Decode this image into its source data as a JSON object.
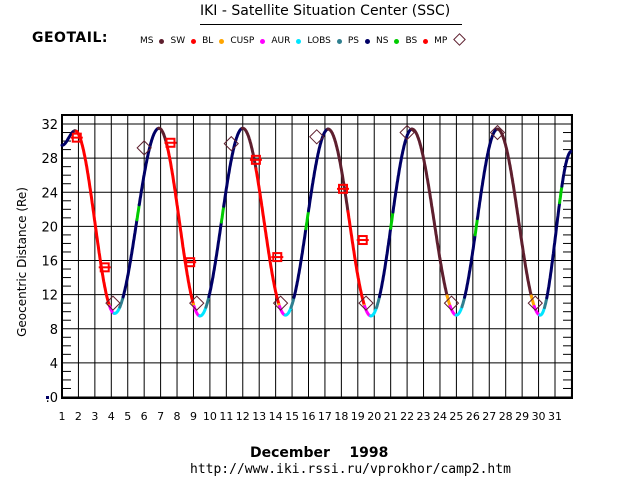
{
  "header": {
    "title": "IKI - Satellite Situation Center (SSC)",
    "satellite": "GEOTAIL:",
    "url": "http://www.iki.rssi.ru/vprokhor/camp2.htm"
  },
  "legend": [
    {
      "label": "MS",
      "color": "#5e1f2e",
      "marker": "dot"
    },
    {
      "label": "SW",
      "color": "#ff0000",
      "marker": "dot"
    },
    {
      "label": "BL",
      "color": "#ffa500",
      "marker": "dot"
    },
    {
      "label": "CUSP",
      "color": "#ff00ff",
      "marker": "dot"
    },
    {
      "label": "AUR",
      "color": "#00e5ff",
      "marker": "dot"
    },
    {
      "label": "LOBS",
      "color": "#2f7f8f",
      "marker": "dot"
    },
    {
      "label": "PS",
      "color": "#000066",
      "marker": "dot"
    },
    {
      "label": "NS",
      "color": "#00cc00",
      "marker": "dot"
    },
    {
      "label": "BS",
      "color": "#ff0000",
      "marker": "dot"
    },
    {
      "label": "MP",
      "color": "#5e1f2e",
      "marker": "diamond"
    }
  ],
  "chart_data": {
    "type": "line",
    "title": "IKI - Satellite Situation Center (SSC)",
    "xlabel": "December    1998",
    "ylabel": "Geocentric Distance (Re)",
    "xlim": [
      1,
      32
    ],
    "ylim": [
      0,
      33
    ],
    "grid": true,
    "x_ticks": [
      "1",
      "2",
      "3",
      "4",
      "5",
      "6",
      "7",
      "8",
      "9",
      "10",
      "11",
      "12",
      "13",
      "14",
      "15",
      "16",
      "17",
      "18",
      "19",
      "20",
      "21",
      "22",
      "23",
      "24",
      "25",
      "26",
      "27",
      "28",
      "29",
      "30",
      "31"
    ],
    "y_ticks": [
      ".0",
      "4",
      "8",
      "12",
      "16",
      "20",
      "24",
      "28",
      "32"
    ],
    "y_tick_values": [
      0,
      4,
      8,
      12,
      16,
      20,
      24,
      28,
      32
    ],
    "orbit": {
      "apogees": [
        [
          1.8,
          31.2
        ],
        [
          6.9,
          31.5
        ],
        [
          12.0,
          31.5
        ],
        [
          17.2,
          31.4
        ],
        [
          22.3,
          31.4
        ],
        [
          27.5,
          31.4
        ]
      ],
      "perigees": [
        [
          4.2,
          9.8
        ],
        [
          9.4,
          9.5
        ],
        [
          14.6,
          9.6
        ],
        [
          19.8,
          9.5
        ],
        [
          25.0,
          9.6
        ],
        [
          30.1,
          9.6
        ]
      ],
      "start": [
        1.0,
        29.5
      ],
      "end": [
        32.0,
        28.8
      ]
    },
    "region_segments": [
      {
        "region": "SW",
        "from": 1.9,
        "to": 3.9
      },
      {
        "region": "SW",
        "from": 7.4,
        "to": 9.0
      },
      {
        "region": "SW",
        "from": 12.8,
        "to": 14.2
      },
      {
        "region": "SW",
        "from": 18.4,
        "to": 19.4
      }
    ],
    "bow_shock_crossings": [
      [
        1.9,
        30.4
      ],
      [
        3.6,
        15.2
      ],
      [
        7.6,
        29.8
      ],
      [
        8.8,
        15.8
      ],
      [
        12.8,
        27.8
      ],
      [
        14.1,
        16.4
      ],
      [
        18.1,
        24.4
      ],
      [
        19.3,
        18.4
      ]
    ],
    "magnetopause_crossings": [
      [
        4.1,
        11.0
      ],
      [
        6.0,
        29.2
      ],
      [
        9.2,
        11.0
      ],
      [
        11.3,
        29.7
      ],
      [
        14.3,
        11.0
      ],
      [
        16.5,
        30.5
      ],
      [
        19.5,
        11.0
      ],
      [
        22.0,
        31.0
      ],
      [
        24.7,
        11.0
      ],
      [
        27.5,
        31.0
      ],
      [
        29.8,
        11.0
      ]
    ]
  }
}
